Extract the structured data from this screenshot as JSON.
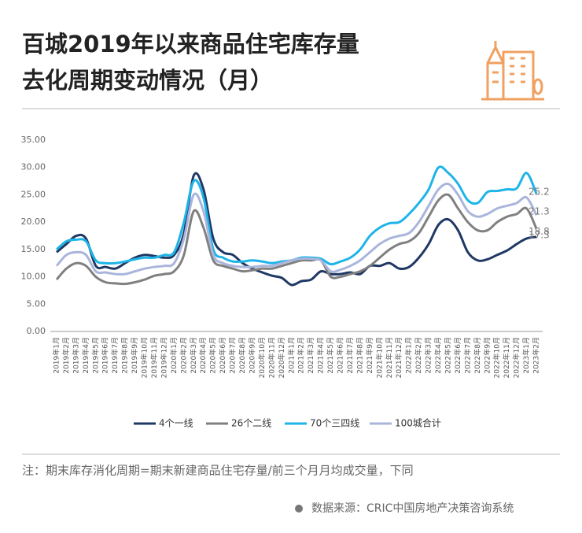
{
  "title": [
    "百城2019年以来商品住宅库存量",
    "去化周期变动情况（月）"
  ],
  "chart_data": {
    "type": "line",
    "categories": [
      "2019年1月",
      "2019年2月",
      "2019年3月",
      "2019年4月",
      "2019年5月",
      "2019年6月",
      "2019年7月",
      "2019年8月",
      "2019年9月",
      "2019年10月",
      "2019年11月",
      "2019年12月",
      "2020年1月",
      "2020年2月",
      "2020年3月",
      "2020年4月",
      "2020年5月",
      "2020年6月",
      "2020年7月",
      "2020年8月",
      "2020年9月",
      "2020年10月",
      "2020年11月",
      "2020年12月",
      "2021年1月",
      "2021年2月",
      "2021年3月",
      "2021年4月",
      "2021年5月",
      "2021年6月",
      "2021年7月",
      "2021年8月",
      "2021年9月",
      "2021年10月",
      "2021年11月",
      "2021年12月",
      "2022年1月",
      "2022年2月",
      "2022年3月",
      "2022年4月",
      "2022年5月",
      "2022年6月",
      "2022年7月",
      "2022年8月",
      "2022年9月",
      "2022年10月",
      "2022年11月",
      "2022年12月",
      "2023年1月",
      "2023年2月"
    ],
    "series": [
      {
        "name": "4个一线",
        "color": "#1f3864",
        "values": [
          14.5,
          16,
          17.5,
          17,
          12,
          11.8,
          11.5,
          12.5,
          13.5,
          14,
          13.8,
          13.5,
          14,
          18,
          28.5,
          26,
          17,
          14.5,
          14,
          12.5,
          11.5,
          10.8,
          10.2,
          9.8,
          8.5,
          9.2,
          9.5,
          11,
          10.5,
          10.5,
          10.8,
          10.5,
          12,
          12,
          12.5,
          11.5,
          11.8,
          13.5,
          16,
          19.5,
          20.5,
          18.5,
          14.5,
          13,
          13.2,
          14,
          14.8,
          16,
          17,
          17.3
        ]
      },
      {
        "name": "26个二线",
        "color": "#808080",
        "values": [
          9.5,
          11.5,
          12.5,
          12,
          10,
          9,
          8.8,
          8.7,
          9,
          9.5,
          10.2,
          10.5,
          11,
          14,
          22,
          19,
          13,
          12,
          11.5,
          11,
          11.2,
          11.5,
          11.5,
          12,
          12.5,
          13,
          13,
          13,
          10,
          10,
          10.5,
          11,
          12,
          13.5,
          15,
          16,
          16.5,
          18,
          21,
          24,
          25,
          22.5,
          20,
          18.5,
          18.5,
          20,
          21,
          21.5,
          22.5,
          18.8
        ]
      },
      {
        "name": "70个三四线",
        "color": "#1eb4e8",
        "values": [
          15,
          16.5,
          16.8,
          16.5,
          13,
          12.5,
          12.5,
          12.8,
          13.2,
          13.5,
          13.5,
          14,
          14.5,
          20,
          27.5,
          24.5,
          15,
          13.5,
          12.8,
          12.8,
          13,
          12.8,
          12.5,
          12.8,
          13,
          13.5,
          13.5,
          13.3,
          12.3,
          12.8,
          13.5,
          15,
          17.5,
          19,
          19.8,
          20,
          21.5,
          23.5,
          26,
          30,
          29,
          27,
          24,
          23.5,
          25.5,
          25.7,
          26,
          26.2,
          29,
          25.2
        ]
      },
      {
        "name": "100城合计",
        "color": "#aab5dc",
        "values": [
          12,
          14,
          14.5,
          14,
          11,
          10.8,
          10.5,
          10.5,
          11,
          11.5,
          11.8,
          12,
          12.5,
          17,
          25,
          22,
          14,
          12.5,
          12,
          11.8,
          11.8,
          12,
          12,
          12.5,
          13,
          13.3,
          13.3,
          13,
          11,
          11.3,
          12,
          13,
          14.5,
          16,
          17,
          17.5,
          18,
          20,
          23,
          26,
          27,
          25,
          22,
          21,
          21.5,
          22.5,
          23,
          23.5,
          24.5,
          21.3
        ]
      }
    ],
    "ylim": [
      0,
      35
    ],
    "yticks": [
      {
        "value": 0,
        "label": "0.00"
      },
      {
        "value": 5,
        "label": "5.00"
      },
      {
        "value": 10,
        "label": "10.00"
      },
      {
        "value": 15,
        "label": "15.00"
      },
      {
        "value": 20,
        "label": "20.00"
      },
      {
        "value": 25,
        "label": "25.00"
      },
      {
        "value": 30,
        "label": "30.00"
      },
      {
        "value": 35,
        "label": "35.00"
      }
    ],
    "grid": false
  },
  "note": "注：期末库存消化周期=期末新建商品住宅存量/前三个月月均成交量，下同",
  "source": "数据来源：CRIC中国房地产决策咨询系统"
}
